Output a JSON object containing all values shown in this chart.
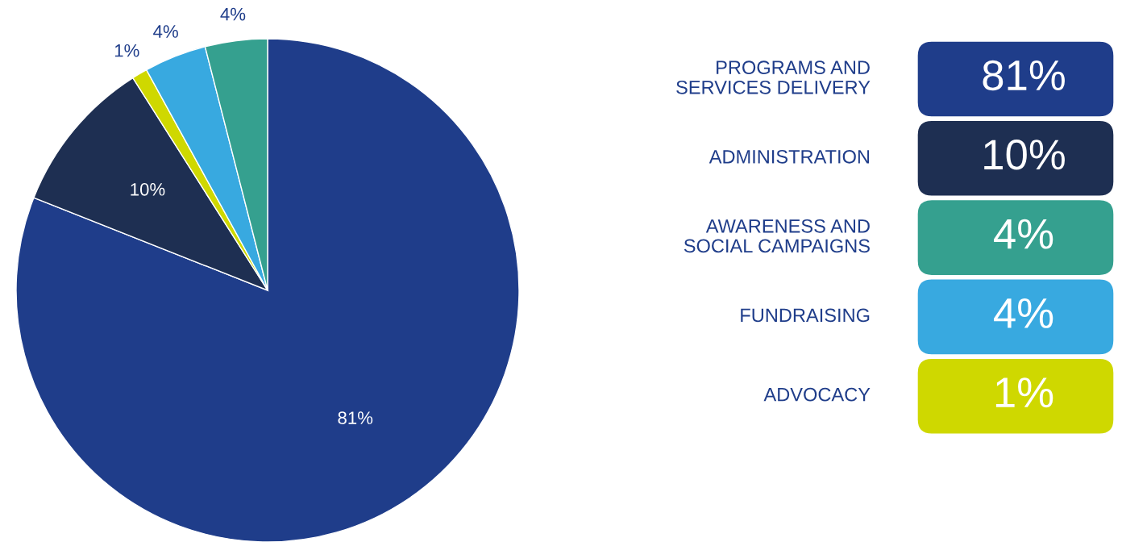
{
  "chart_data": [
    {
      "type": "pie",
      "categories": [
        null,
        null,
        null,
        null,
        null
      ],
      "values": [
        81,
        10,
        1,
        4,
        4
      ],
      "value_labels": [
        "81%",
        "10%",
        "1%",
        "4%",
        "4%"
      ],
      "colors": [
        "#1f3d8a",
        "#1e2f52",
        "#cfd800",
        "#38a9e0",
        "#35a08f"
      ]
    },
    {
      "type": "other",
      "categories": [
        "PROGRAMS AND\nSERVICES DELIVERY",
        "ADMINISTRATION",
        "AWARENESS AND\nSOCIAL CAMPAIGNS",
        "FUNDRAISING",
        "ADVOCACY"
      ],
      "value_labels": [
        "81%",
        "10%",
        "4%",
        "4%",
        "1%"
      ],
      "colors": [
        "#1f3d8a",
        "#1e2f52",
        "#35a08f",
        "#38a9e0",
        "#cfd800"
      ]
    }
  ]
}
